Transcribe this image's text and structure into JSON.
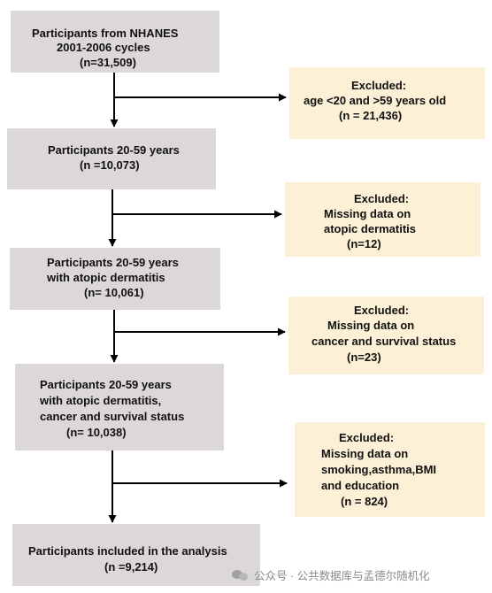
{
  "flowchart": {
    "main_boxes": [
      {
        "lines": [
          "Participants from NHANES",
          "2001-2006 cycles",
          "(n=31,509)"
        ]
      },
      {
        "lines": [
          "Participants 20-59  years",
          "(n =10,073)"
        ]
      },
      {
        "lines": [
          "Participants 20-59  years",
          "with atopic dermatitis",
          "(n= 10,061)"
        ]
      },
      {
        "lines": [
          "Participants 20-59  years",
          "with atopic dermatitis,",
          "cancer and survival status",
          "(n= 10,038)"
        ]
      },
      {
        "lines": [
          "Participants included in the analysis",
          "(n =9,214)"
        ]
      }
    ],
    "excluded_boxes": [
      {
        "lines": [
          "Excluded:",
          "age <20 and >59 years old",
          "(n = 21,436)"
        ]
      },
      {
        "lines": [
          "Excluded:",
          "Missing data on",
          "atopic dermatitis",
          "(n=12)"
        ]
      },
      {
        "lines": [
          "Excluded:",
          "Missing data on",
          "cancer  and survival status",
          "(n=23)"
        ]
      },
      {
        "lines": [
          "Excluded:",
          "Missing data on",
          "smoking,asthma,BMI",
          "and education",
          "(n = 824)"
        ]
      }
    ]
  },
  "watermark": {
    "text": "公众号 · 公共数据库与孟德尔随机化",
    "icon": "wechat-icon"
  },
  "colors": {
    "main_box": "#dcd7da",
    "excluded_box": "#fcf0d6",
    "arrow": "#000000"
  }
}
